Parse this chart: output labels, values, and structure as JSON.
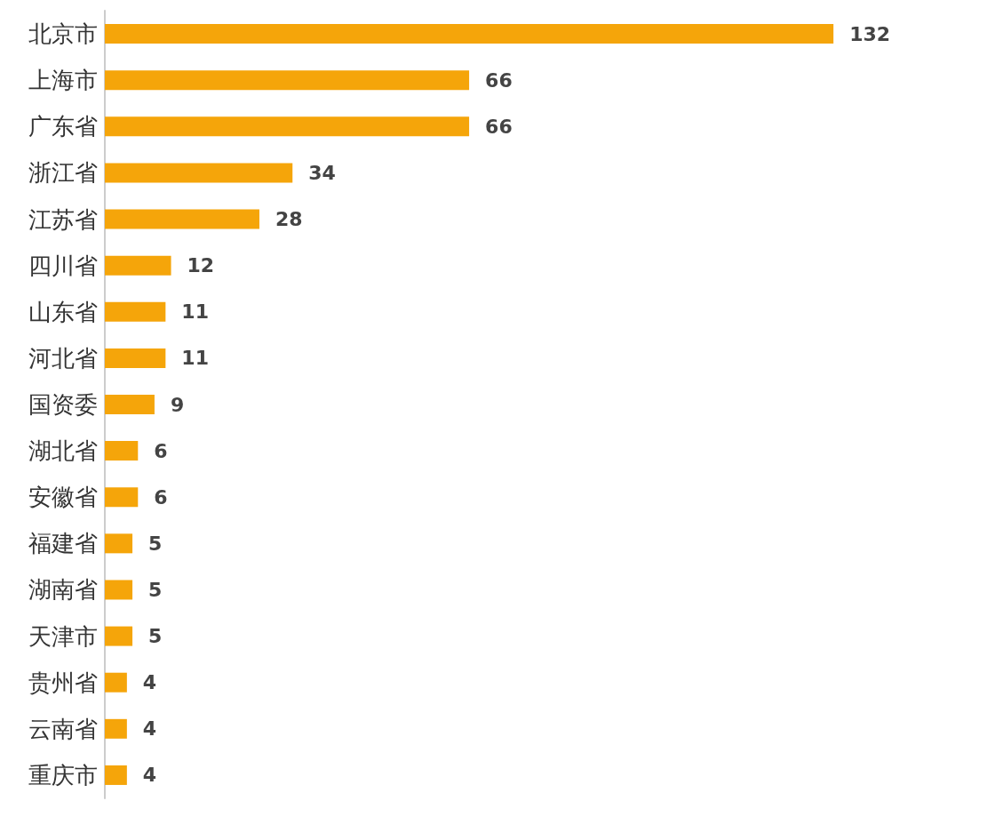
{
  "chart_data": {
    "type": "bar",
    "orientation": "horizontal",
    "categories": [
      "北京市",
      "上海市",
      "广东省",
      "浙江省",
      "江苏省",
      "四川省",
      "山东省",
      "河北省",
      "国资委",
      "湖北省",
      "安徽省",
      "福建省",
      "湖南省",
      "天津市",
      "贵州省",
      "云南省",
      "重庆市"
    ],
    "values": [
      132,
      66,
      66,
      34,
      28,
      12,
      11,
      11,
      9,
      6,
      6,
      5,
      5,
      5,
      4,
      4,
      4
    ],
    "color": "#f5a50a",
    "data_labels": true,
    "grid": false,
    "tick_labels": "y"
  }
}
